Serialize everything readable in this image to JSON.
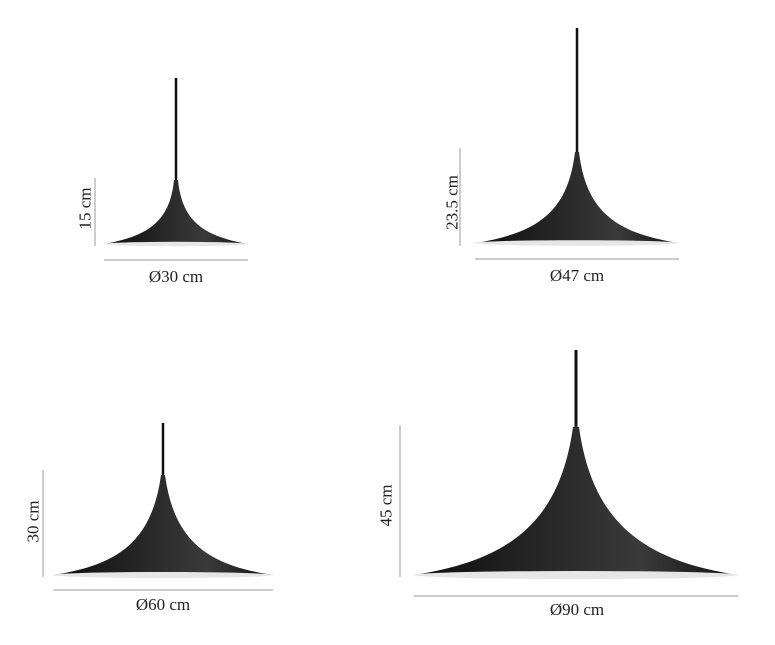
{
  "lamps": [
    {
      "height": "15 cm",
      "diameter": "Ø30 cm"
    },
    {
      "height": "23.5 cm",
      "diameter": "Ø47 cm"
    },
    {
      "height": "30 cm",
      "diameter": "Ø60 cm"
    },
    {
      "height": "45 cm",
      "diameter": "Ø90 cm"
    }
  ],
  "colors": {
    "shade": "#1b1b1b",
    "inner": "#e8e8e8",
    "dimension_line": "#9a9a9a",
    "cord": "#111111"
  }
}
